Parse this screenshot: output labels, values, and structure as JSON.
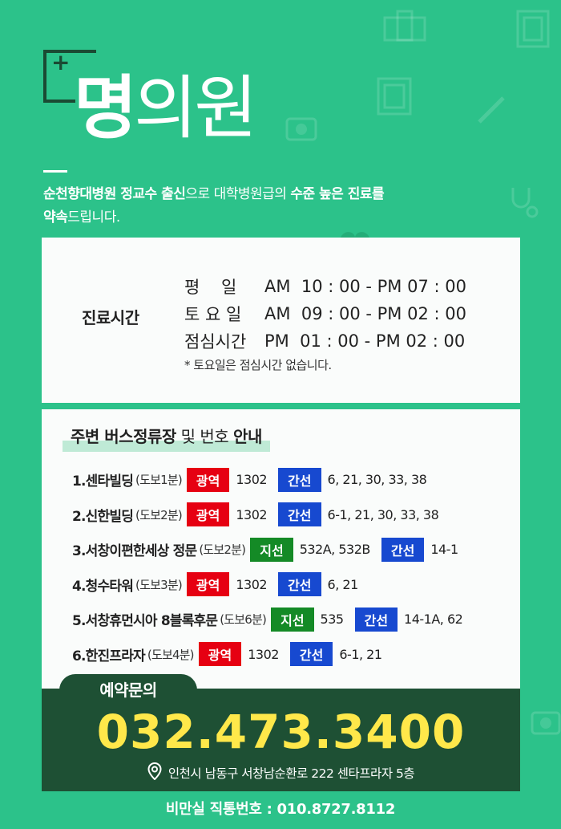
{
  "logo": {
    "plus": "+",
    "name_strong": "명",
    "name_light": "의원"
  },
  "intro": {
    "part1_bold": "순천향대병원 정교수 출신",
    "part2": "으로 대학병원급의 ",
    "part3_bold": "수준 높은 진료를",
    "part4_bold": "약속",
    "part5": "드립니다."
  },
  "hours": {
    "label": "진료시간",
    "rows": [
      {
        "day": "평    일",
        "time": "AM  10 : 00 - PM 07 : 00"
      },
      {
        "day": "토 요 일",
        "time": "AM  09 : 00 - PM 02 : 00"
      },
      {
        "day": "점심시간",
        "time": "PM  01 : 00 - PM 02 : 00"
      }
    ],
    "note": "* 토요일은 점심시간 없습니다."
  },
  "bus": {
    "title_bold1": "주변 버스정류장",
    "title_mid": " 및 번호 ",
    "title_bold2": "안내",
    "stops": [
      {
        "name": "1.센타빌딩",
        "walk": "(도보1분)",
        "routes": [
          {
            "type": "광역",
            "color": "red",
            "numbers": "1302"
          },
          {
            "type": "간선",
            "color": "blue",
            "numbers": "6, 21, 30, 33, 38"
          }
        ]
      },
      {
        "name": "2.신한빌딩",
        "walk": "(도보2분)",
        "routes": [
          {
            "type": "광역",
            "color": "red",
            "numbers": "1302"
          },
          {
            "type": "간선",
            "color": "blue",
            "numbers": "6-1, 21, 30, 33, 38"
          }
        ]
      },
      {
        "name": "3.서창이편한세상 정문",
        "walk": "(도보2분)",
        "routes": [
          {
            "type": "지선",
            "color": "green",
            "numbers": "532A, 532B"
          },
          {
            "type": "간선",
            "color": "blue",
            "numbers": "14-1"
          }
        ]
      },
      {
        "name": "4.청수타워",
        "walk": "(도보3분)",
        "routes": [
          {
            "type": "광역",
            "color": "red",
            "numbers": "1302"
          },
          {
            "type": "간선",
            "color": "blue",
            "numbers": "6, 21"
          }
        ]
      },
      {
        "name": "5.서창휴먼시아 8블록후문",
        "walk": "(도보6분)",
        "routes": [
          {
            "type": "지선",
            "color": "green",
            "numbers": "535"
          },
          {
            "type": "간선",
            "color": "blue",
            "numbers": "14-1A, 62"
          }
        ]
      },
      {
        "name": "6.한진프라자",
        "walk": "(도보4분)",
        "routes": [
          {
            "type": "광역",
            "color": "red",
            "numbers": "1302"
          },
          {
            "type": "간선",
            "color": "blue",
            "numbers": "6-1, 21"
          }
        ]
      }
    ]
  },
  "reservation": {
    "tab_label": "예약문의",
    "phone": "032.473.3400",
    "address": "인천시 남동구 서창남순환로 222 센타프라자 5층"
  },
  "direct": {
    "text": "비만실 직통번호 : 010.8727.8112"
  },
  "colors": {
    "background": "#2cc28a",
    "dark_green": "#1e5034",
    "phone_yellow": "#ffe84a",
    "badge_red": "#e60012",
    "badge_blue": "#1749d0",
    "badge_green": "#148a26"
  }
}
